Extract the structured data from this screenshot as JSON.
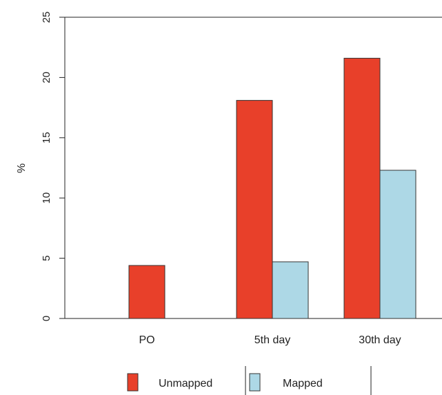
{
  "chart_data": {
    "type": "bar",
    "title": "",
    "xlabel": "",
    "ylabel": "%",
    "ylim": [
      0,
      25
    ],
    "yticks": [
      "0",
      "5",
      "10",
      "15",
      "20",
      "25"
    ],
    "categories": [
      "PO",
      "5th day",
      "30th day"
    ],
    "series": [
      {
        "name": "Unmapped",
        "color": "#e8402a",
        "values": [
          4.4,
          18.1,
          21.6
        ]
      },
      {
        "name": "Mapped",
        "color": "#add8e6",
        "values": [
          null,
          4.7,
          12.3
        ]
      }
    ],
    "grid": false,
    "legend_position": "bottom"
  }
}
